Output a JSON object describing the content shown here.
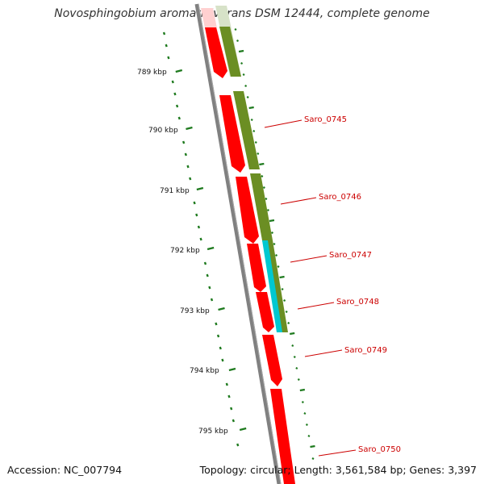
{
  "title": "Novosphingobium aromaticivorans DSM 12444, complete genome",
  "accession_text": "Accession: NC_007794",
  "summary_text": "Topology: circular; Length: 3,561,584 bp; Genes: 3,397",
  "ruler_unit": "kbp",
  "ticks_kbp": [
    789,
    790,
    791,
    792,
    793,
    794,
    795
  ],
  "ticks": [
    {
      "label": "789 kbp"
    },
    {
      "label": "790 kbp"
    },
    {
      "label": "791 kbp"
    },
    {
      "label": "792 kbp"
    },
    {
      "label": "793 kbp"
    },
    {
      "label": "794 kbp"
    },
    {
      "label": "795 kbp"
    }
  ],
  "genes": [
    {
      "name": "Saro_0745"
    },
    {
      "name": "Saro_0746"
    },
    {
      "name": "Saro_0747"
    },
    {
      "name": "Saro_0748"
    },
    {
      "name": "Saro_0749"
    },
    {
      "name": "Saro_0750"
    }
  ],
  "colors": {
    "cds": "#ff0000",
    "gene": "#6b8e23",
    "feature": "#00c8d0",
    "backbone": "#808080",
    "ruler": "#1e7a1e",
    "label": "#cc0000"
  }
}
